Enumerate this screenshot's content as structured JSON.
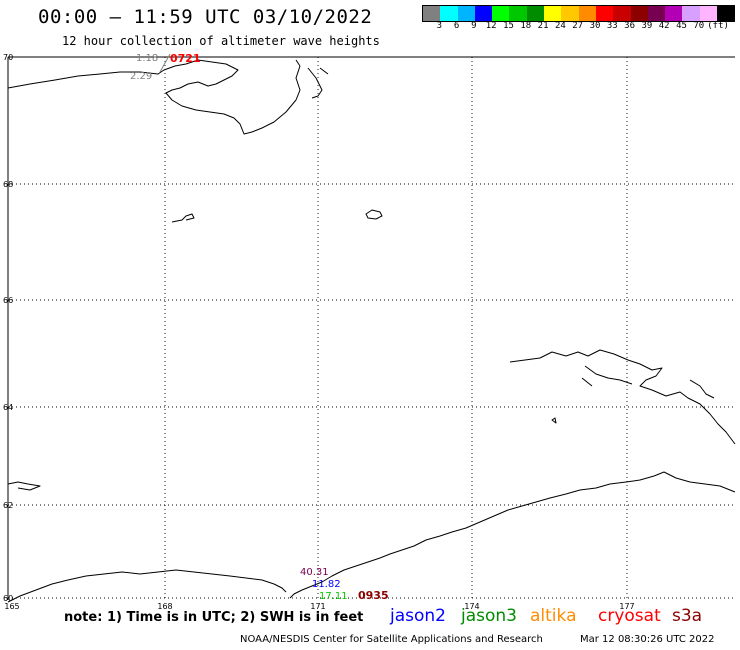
{
  "header": {
    "title": "00:00 – 11:59 UTC 03/10/2022",
    "subtitle": "12 hour collection of altimeter wave heights"
  },
  "colorbar": {
    "colors": [
      "#808080",
      "#00ffff",
      "#00b4ff",
      "#0000ff",
      "#00ff00",
      "#00c800",
      "#008c00",
      "#ffff00",
      "#ffc800",
      "#ff8c00",
      "#ff0000",
      "#c80000",
      "#8c0000",
      "#780050",
      "#b400b4",
      "#d7a0ff",
      "#ffb4ff",
      "#000000"
    ],
    "labels": [
      "3",
      "6",
      "9",
      "12",
      "15",
      "18",
      "21",
      "24",
      "27",
      "30",
      "33",
      "36",
      "39",
      "42",
      "45",
      "70",
      "(ft)"
    ]
  },
  "map": {
    "lat_labels": [
      "70",
      "68",
      "66",
      "64",
      "62",
      "60"
    ],
    "lon_labels": [
      "165",
      "168",
      "171",
      "174",
      "177"
    ]
  },
  "observations": [
    {
      "text": "1.18",
      "color": "#808080"
    },
    {
      "text": "2.29",
      "color": "#808080"
    },
    {
      "text": "40.31",
      "color": "#780050"
    },
    {
      "text": "11.82",
      "color": "#0000ff"
    },
    {
      "text": "17.11",
      "color": "#00c800"
    }
  ],
  "time_labels": [
    {
      "text": "0721",
      "color": "#ff0000"
    },
    {
      "text": "0935",
      "color": "#8c0000"
    }
  ],
  "note": "note: 1) Time is in UTC; 2) SWH is in feet",
  "satellites": [
    {
      "name": "jason2",
      "color": "#0000ff"
    },
    {
      "name": "jason3",
      "color": "#008c00"
    },
    {
      "name": "altika",
      "color": "#ff8c00"
    },
    {
      "name": "cryosat",
      "color": "#ff0000"
    },
    {
      "name": "s3a",
      "color": "#8c0000"
    }
  ],
  "footer": {
    "credit": "NOAA/NESDIS Center for Satellite Applications and Research",
    "timestamp": "Mar 12 08:30:26 UTC 2022"
  }
}
